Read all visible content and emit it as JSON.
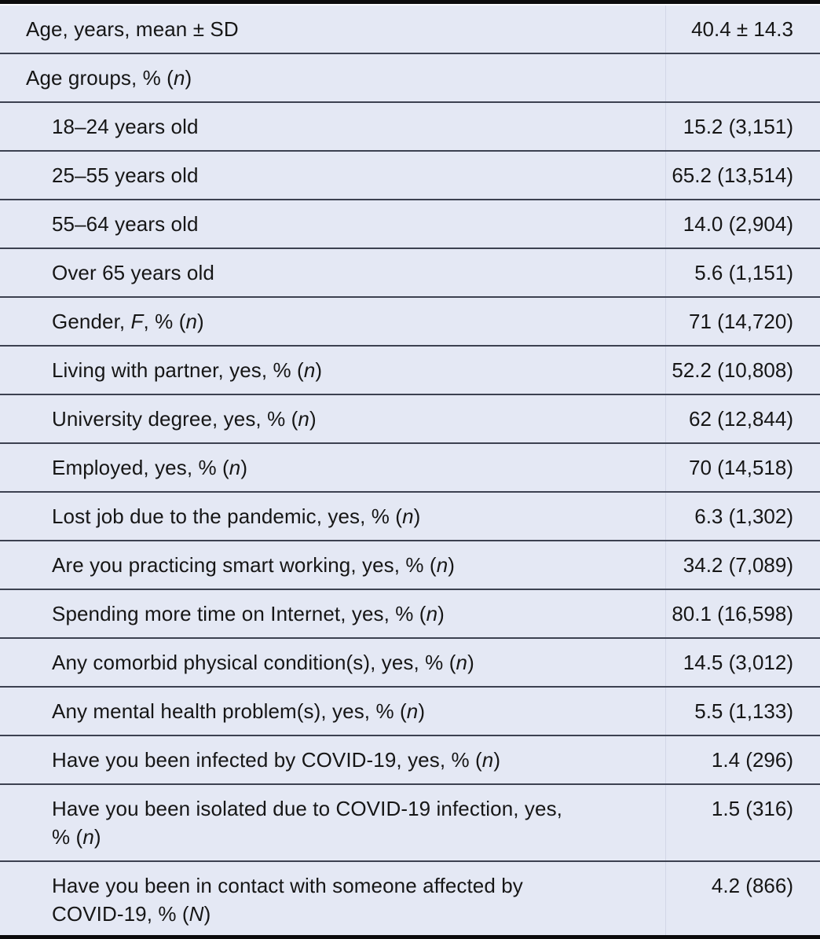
{
  "table": {
    "colors": {
      "background": "#e4e8f4",
      "row_line": "#3c4150",
      "outer_border": "#0b0b0c",
      "column_divider": "#d2d7e7",
      "text": "#161616"
    },
    "rows": [
      {
        "label": "Age, years, mean ± SD",
        "value": "40.4 ± 14.3",
        "indent": 0
      },
      {
        "label": "Age groups, % (*n*)",
        "value": "",
        "indent": 0
      },
      {
        "label": "18–24 years old",
        "value": "15.2 (3,151)",
        "indent": 1
      },
      {
        "label": "25–55 years old",
        "value": "65.2 (13,514)",
        "indent": 1
      },
      {
        "label": "55–64 years old",
        "value": "14.0 (2,904)",
        "indent": 1
      },
      {
        "label": "Over 65 years old",
        "value": "5.6 (1,151)",
        "indent": 1
      },
      {
        "label": "Gender, *F*, % (*n*)",
        "value": "71 (14,720)",
        "indent": 1
      },
      {
        "label": "Living with partner, yes, % (*n*)",
        "value": "52.2 (10,808)",
        "indent": 1
      },
      {
        "label": "University degree, yes, % (*n*)",
        "value": "62 (12,844)",
        "indent": 1
      },
      {
        "label": "Employed, yes, % (*n*)",
        "value": "70 (14,518)",
        "indent": 1
      },
      {
        "label": "Lost job due to the pandemic, yes, % (*n*)",
        "value": "6.3 (1,302)",
        "indent": 1
      },
      {
        "label": "Are you practicing smart working, yes, % (*n*)",
        "value": "34.2 (7,089)",
        "indent": 1
      },
      {
        "label": "Spending more time on Internet, yes, % (*n*)",
        "value": "80.1 (16,598)",
        "indent": 1
      },
      {
        "label": "Any comorbid physical condition(s), yes, % (*n*)",
        "value": "14.5 (3,012)",
        "indent": 1
      },
      {
        "label": "Any mental health problem(s), yes, % (*n*)",
        "value": "5.5 (1,133)",
        "indent": 1
      },
      {
        "label": "Have you been infected by COVID-19, yes, % (*n*)",
        "value": "1.4 (296)",
        "indent": 1
      },
      {
        "label": "Have you been isolated due to COVID-19 infection, yes, % (*n*)",
        "value": "1.5 (316)",
        "indent": 1
      },
      {
        "label": "Have you been in contact with someone affected by COVID-19, % (*N*)",
        "value": "4.2 (866)",
        "indent": 1
      }
    ]
  }
}
